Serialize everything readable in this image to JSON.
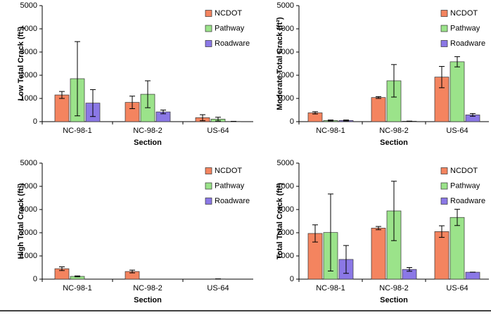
{
  "chart_data": [
    {
      "type": "bar",
      "ylabel": "Low Total  Crack (ft²)",
      "xlabel": "Section",
      "categories": [
        "NC-98-1",
        "NC-98-2",
        "US-64"
      ],
      "series": [
        {
          "name": "NCDOT",
          "color": "#f4845f",
          "values": [
            1150,
            830,
            170
          ],
          "errors": [
            150,
            270,
            130
          ]
        },
        {
          "name": "Pathway",
          "color": "#9be38a",
          "values": [
            1850,
            1180,
            110
          ],
          "errors": [
            1600,
            580,
            80
          ]
        },
        {
          "name": "Roadware",
          "color": "#8b78e6",
          "values": [
            800,
            420,
            10
          ],
          "errors": [
            580,
            80,
            0
          ]
        }
      ],
      "ylim": [
        0,
        5000
      ],
      "yticks": [
        0,
        1000,
        2000,
        3000,
        4000,
        5000
      ],
      "grid": false,
      "legend": "upper right"
    },
    {
      "type": "bar",
      "ylabel": "Moderate Total Crack (ft²)",
      "xlabel": "Section",
      "categories": [
        "NC-98-1",
        "NC-98-2",
        "US-64"
      ],
      "series": [
        {
          "name": "NCDOT",
          "color": "#f4845f",
          "values": [
            380,
            1040,
            1920
          ],
          "errors": [
            50,
            40,
            460
          ]
        },
        {
          "name": "Pathway",
          "color": "#9be38a",
          "values": [
            50,
            1760,
            2580
          ],
          "errors": [
            20,
            700,
            220
          ]
        },
        {
          "name": "Roadware",
          "color": "#8b78e6",
          "values": [
            50,
            20,
            290
          ],
          "errors": [
            20,
            0,
            60
          ]
        }
      ],
      "ylim": [
        0,
        5000
      ],
      "yticks": [
        0,
        1000,
        2000,
        3000,
        4000,
        5000
      ],
      "grid": false,
      "legend": "upper right"
    },
    {
      "type": "bar",
      "ylabel": "High Total  Crack (ft²)",
      "xlabel": "Section",
      "categories": [
        "NC-98-1",
        "NC-98-2",
        "US-64"
      ],
      "series": [
        {
          "name": "NCDOT",
          "color": "#f4845f",
          "values": [
            450,
            330,
            0
          ],
          "errors": [
            80,
            60,
            0
          ]
        },
        {
          "name": "Pathway",
          "color": "#9be38a",
          "values": [
            120,
            0,
            10
          ],
          "errors": [
            20,
            0,
            0
          ]
        },
        {
          "name": "Roadware",
          "color": "#8b78e6",
          "values": [
            0,
            0,
            0
          ],
          "errors": [
            0,
            0,
            0
          ]
        }
      ],
      "ylim": [
        0,
        5000
      ],
      "yticks": [
        0,
        1000,
        2000,
        3000,
        4000,
        5000
      ],
      "grid": false,
      "legend": "upper right"
    },
    {
      "type": "bar",
      "ylabel": "Total  Total  Crack (ft²)",
      "xlabel": "Section",
      "categories": [
        "NC-98-1",
        "NC-98-2",
        "US-64"
      ],
      "series": [
        {
          "name": "NCDOT",
          "color": "#f4845f",
          "values": [
            1970,
            2200,
            2050
          ],
          "errors": [
            370,
            70,
            250
          ]
        },
        {
          "name": "Pathway",
          "color": "#9be38a",
          "values": [
            2010,
            2940,
            2660
          ],
          "errors": [
            1660,
            1280,
            350
          ]
        },
        {
          "name": "Roadware",
          "color": "#8b78e6",
          "values": [
            850,
            420,
            300
          ],
          "errors": [
            600,
            80,
            0
          ]
        }
      ],
      "ylim": [
        0,
        5000
      ],
      "yticks": [
        0,
        1000,
        2000,
        3000,
        4000,
        5000
      ],
      "grid": false,
      "legend": "upper right"
    }
  ]
}
